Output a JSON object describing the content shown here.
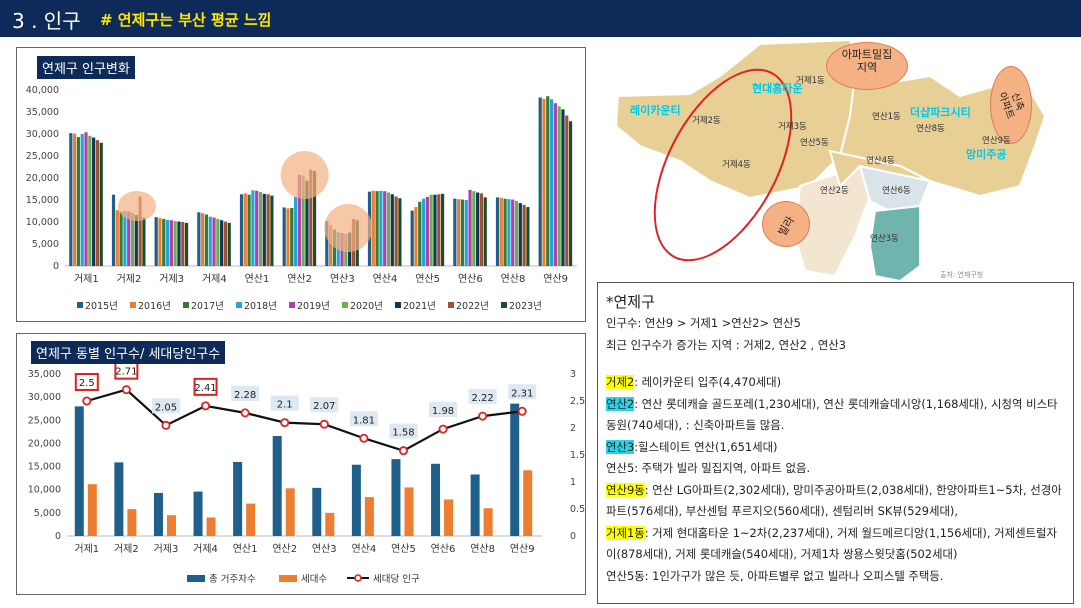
{
  "header": {
    "number": "3 . 인구",
    "subtitle": "# 연제구는 부산 평균 느낌"
  },
  "top_chart": {
    "title": "연제구 인구변화",
    "colors": [
      "#1f5f8b",
      "#ed7d31",
      "#2e7d32",
      "#27a4d8",
      "#b23fb2",
      "#6ab04c",
      "#12355b",
      "#a0522d",
      "#1e4d2b"
    ]
  },
  "bottom_chart": {
    "title": "연제구 동별 인구수/ 세대당인구수",
    "legend": [
      "총 거주자수",
      "세대수",
      "세대당 인구"
    ]
  },
  "chart_data": [
    {
      "type": "bar",
      "title": "연제구 인구변화",
      "categories": [
        "거제1",
        "거제2",
        "거제3",
        "거제4",
        "연산1",
        "연산2",
        "연산3",
        "연산4",
        "연산5",
        "연산6",
        "연산8",
        "연산9"
      ],
      "ylim": [
        0,
        40000
      ],
      "yticks": [
        "0",
        "5,000",
        "10,000",
        "15,000",
        "20,000",
        "25,000",
        "30,000",
        "35,000",
        "40,000"
      ],
      "series": [
        {
          "name": "2015년",
          "values": [
            30200,
            16200,
            11100,
            12200,
            16300,
            13300,
            10200,
            16900,
            12600,
            15300,
            15600,
            38300
          ]
        },
        {
          "name": "2016년",
          "values": [
            30100,
            12700,
            10900,
            12000,
            16500,
            13100,
            9300,
            17100,
            13400,
            15200,
            15500,
            38000
          ]
        },
        {
          "name": "2017년",
          "values": [
            29300,
            12300,
            10700,
            11700,
            16200,
            13200,
            8300,
            17000,
            14600,
            15100,
            15300,
            38600
          ]
        },
        {
          "name": "2018년",
          "values": [
            30000,
            12500,
            10500,
            11200,
            17200,
            15700,
            7700,
            17100,
            15300,
            15000,
            15200,
            37900
          ]
        },
        {
          "name": "2019년",
          "values": [
            30400,
            12400,
            10400,
            11000,
            17100,
            20700,
            7500,
            17000,
            15700,
            17300,
            15100,
            37000
          ]
        },
        {
          "name": "2020년",
          "values": [
            29600,
            12100,
            10200,
            10700,
            16800,
            20500,
            7300,
            16700,
            16200,
            17000,
            14800,
            36300
          ]
        },
        {
          "name": "2021년",
          "values": [
            29200,
            11600,
            10100,
            10400,
            16400,
            19400,
            7600,
            16300,
            16200,
            16700,
            14300,
            35600
          ]
        },
        {
          "name": "2022년",
          "values": [
            28600,
            15800,
            10000,
            10100,
            16300,
            21900,
            10700,
            15800,
            16300,
            16500,
            13900,
            34200
          ]
        },
        {
          "name": "2023년",
          "values": [
            28000,
            11000,
            9800,
            9800,
            16000,
            21600,
            10400,
            15400,
            16400,
            15600,
            13400,
            32900
          ]
        }
      ]
    },
    {
      "type": "bar",
      "title": "연제구 동별 인구수/ 세대당인구수",
      "categories": [
        "거제1",
        "거제2",
        "거제3",
        "거제4",
        "연산1",
        "연산2",
        "연산3",
        "연산4",
        "연산5",
        "연산6",
        "연산8",
        "연산9"
      ],
      "ylim": [
        0,
        35000
      ],
      "y2lim": [
        0,
        3
      ],
      "yticks": [
        "0",
        "5,000",
        "10,000",
        "15,000",
        "20,000",
        "25,000",
        "30,000",
        "35,000"
      ],
      "y2ticks": [
        "0",
        "0.5",
        "1",
        "1.5",
        "2",
        "2.5",
        "3"
      ],
      "series": [
        {
          "name": "총 거주자수",
          "values": [
            28000,
            15900,
            9300,
            9600,
            16000,
            21600,
            10400,
            15400,
            16600,
            15600,
            13300,
            28600
          ]
        },
        {
          "name": "세대수",
          "values": [
            11200,
            5800,
            4500,
            4000,
            7000,
            10300,
            5000,
            8400,
            10500,
            7900,
            6000,
            14200
          ]
        },
        {
          "name": "세대당 인구",
          "axis": "right",
          "values": [
            2.5,
            2.71,
            2.05,
            2.41,
            2.28,
            2.1,
            2.07,
            1.81,
            1.58,
            1.98,
            2.22,
            2.31
          ]
        }
      ],
      "data_labels": [
        "2.5",
        "2.71",
        "2.05",
        "2.41",
        "2.28",
        "2.1",
        "2.07",
        "1.81",
        "1.58",
        "1.98",
        "2.22",
        "2.31"
      ]
    }
  ],
  "map": {
    "callouts": {
      "dense": "아파트밀집\n지역",
      "new": "신축\n아파트",
      "villa": "빌라"
    },
    "places": [
      {
        "id": "hd",
        "label": "현대홈타운"
      },
      {
        "id": "rc",
        "label": "레이카운티"
      },
      {
        "id": "ts",
        "label": "더샵파크시티"
      },
      {
        "id": "mg",
        "label": "망미주공"
      }
    ],
    "dongs": [
      "거제1동",
      "거제2동",
      "거제3동",
      "거제4동",
      "연산1동",
      "연산5동",
      "연산8동",
      "연산9동",
      "연산4동",
      "연산2동",
      "연산6동",
      "연산3동"
    ],
    "source": "출처: 연제구청"
  },
  "notes": {
    "title": "*연제구",
    "lines": [
      "인구수: 연산9 > 거제1 >연산2> 연산5",
      "최근 인구수가 증가는 지역 : 거제2, 연산2 , 연산3"
    ],
    "items": [
      {
        "key": "거제2",
        "hl": "y",
        "text": ": 레이카운티 입주(4,470세대)"
      },
      {
        "key": "연산2",
        "hl": "c",
        "text": ":  연산 롯데캐슬 골드포레(1,230세대), 연산 롯데캐슬데시앙(1,168세대), 시청역 비스타동원(740세대), : 신축아파트들 많음."
      },
      {
        "key": "연산3",
        "hl": "c",
        "text": ":힐스테이트 연산(1,651세대)"
      },
      {
        "key": "",
        "hl": "",
        "text": "연산5: 주택가 빌라 밀집지역, 아파트 없음."
      },
      {
        "key": "연산9동",
        "hl": "y",
        "text": ":  연산 LG아파트(2,302세대), 망미주공아파트(2,038세대), 한양아파트1~5차, 선경아파트(576세대), 부산센텀 푸르지오(560세대), 센텀리버 SK뷰(529세대),"
      },
      {
        "key": "거제1동",
        "hl": "y",
        "text": ": 거제 현대홈타운 1~2차(2,237세대), 거제 월드메르디앙(1,156세대), 거제센트럴자이(878세대), 거제 롯데캐슬(540세대), 거제1차 쌍용스윗닷홈(502세대)"
      },
      {
        "key": "",
        "hl": "",
        "text": "연산5동: 1인가구가 많은 듯, 아파트별루 없고 빌라나 오피스텔 주택등."
      }
    ]
  }
}
